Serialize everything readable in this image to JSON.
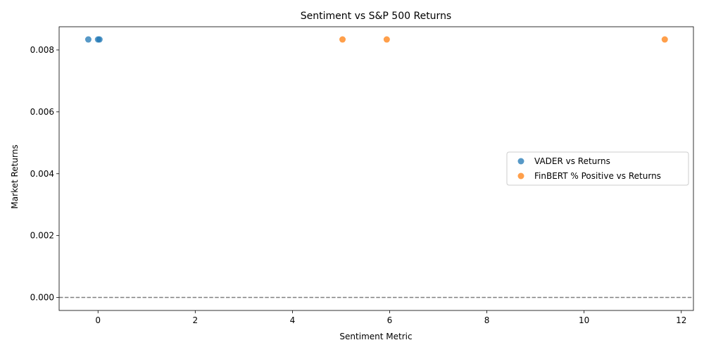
{
  "chart_data": {
    "type": "scatter",
    "title": "Sentiment vs S&P 500 Returns",
    "xlabel": "Sentiment Metric",
    "ylabel": "Market Returns",
    "xlim": [
      -0.8,
      12.25
    ],
    "ylim": [
      -0.00042,
      0.00875
    ],
    "xticks": [
      0,
      2,
      4,
      6,
      8,
      10,
      12
    ],
    "xtick_labels": [
      "0",
      "2",
      "4",
      "6",
      "8",
      "10",
      "12"
    ],
    "yticks": [
      0,
      0.002,
      0.004,
      0.006,
      0.008
    ],
    "ytick_labels": [
      "0.000",
      "0.002",
      "0.004",
      "0.006",
      "0.008"
    ],
    "reference_line": {
      "y": 0,
      "style": "dashed",
      "color": "#808080"
    },
    "grid": false,
    "legend_position": "center-right",
    "series": [
      {
        "name": "VADER vs Returns",
        "color": "#1f77b4",
        "points": [
          {
            "x": -0.2,
            "y": 0.00834
          },
          {
            "x": 0.0,
            "y": 0.00834
          },
          {
            "x": 0.03,
            "y": 0.00834
          }
        ]
      },
      {
        "name": "FinBERT % Positive vs Returns",
        "color": "#ff7f0e",
        "points": [
          {
            "x": 5.03,
            "y": 0.00834
          },
          {
            "x": 5.94,
            "y": 0.00834
          },
          {
            "x": 11.66,
            "y": 0.00834
          }
        ]
      }
    ]
  }
}
